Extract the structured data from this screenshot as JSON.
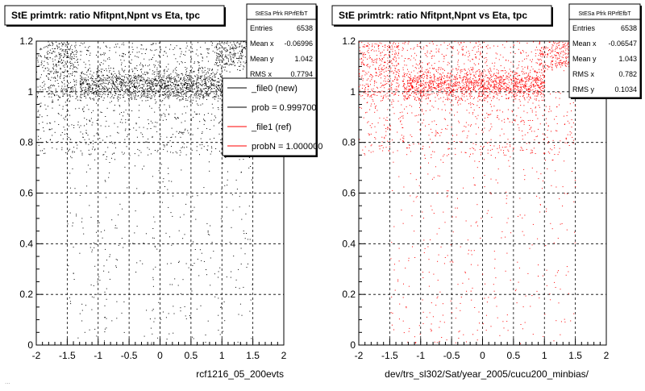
{
  "footer_text": "...",
  "chart_data": [
    {
      "type": "scatter",
      "title": "StE primtrk: ratio Nfitpnt,Npnt vs Eta, tpc",
      "xlim": [
        -2,
        2
      ],
      "ylim": [
        0,
        1.2
      ],
      "xticks": [
        -2,
        -1.5,
        -1,
        -0.5,
        0,
        0.5,
        1,
        1.5,
        2
      ],
      "yticks": [
        0,
        0.2,
        0.4,
        0.6,
        0.8,
        1,
        1.2
      ],
      "grid": true,
      "xlabel": "rcf1216_05_200evts",
      "marker_color": "#000000",
      "stats": {
        "name": "StESa Pfrk RPrfEfbT",
        "rows": [
          {
            "label": "Entries",
            "value": "6538"
          },
          {
            "label": "Mean x",
            "value": "-0.06996"
          },
          {
            "label": "Mean y",
            "value": "1.042"
          },
          {
            "label": "RMS x",
            "value": "0.7794"
          }
        ]
      },
      "legend": {
        "placement": "top-right",
        "entries": [
          {
            "label": "_file0 (new)",
            "color": "#000000"
          },
          {
            "label": "prob = 0.999700",
            "color": "#000000"
          },
          {
            "label": "_file1 (ref)",
            "color": "#ff0000"
          },
          {
            "label": "probN = 1.000000",
            "color": "#ff0000"
          }
        ]
      },
      "density_bands": [
        {
          "x": [
            -2,
            -1.35
          ],
          "y": [
            0.98,
            1.2
          ],
          "weight": 0.1
        },
        {
          "x": [
            -1.3,
            1.0
          ],
          "y": [
            0.96,
            1.1
          ],
          "weight": 0.42
        },
        {
          "x": [
            -1.7,
            1.9
          ],
          "y": [
            1.08,
            1.2
          ],
          "weight": 0.12
        },
        {
          "x": [
            0.9,
            1.9
          ],
          "y": [
            1.1,
            1.2
          ],
          "weight": 0.1
        },
        {
          "x": [
            -2,
            1.5
          ],
          "y": [
            0.75,
            1.0
          ],
          "weight": 0.16
        },
        {
          "x": [
            -1.5,
            1.5
          ],
          "y": [
            0.0,
            0.75
          ],
          "weight": 0.1
        }
      ]
    },
    {
      "type": "scatter",
      "title": "StE primtrk: ratio Nfitpnt,Npnt vs Eta, tpc",
      "xlim": [
        -2,
        2
      ],
      "ylim": [
        0,
        1.2
      ],
      "xticks": [
        -2,
        -1.5,
        -1,
        -0.5,
        0,
        0.5,
        1,
        1.5,
        2
      ],
      "yticks": [
        0,
        0.2,
        0.4,
        0.6,
        0.8,
        1,
        1.2
      ],
      "grid": true,
      "xlabel": "dev/trs_sl302/Sat/year_2005/cucu200_minbias/",
      "marker_color": "#ff0000",
      "stats": {
        "name": "StESa Pfrk RPrfEfbT",
        "rows": [
          {
            "label": "Entries",
            "value": "6538"
          },
          {
            "label": "Mean x",
            "value": "-0.06547"
          },
          {
            "label": "Mean y",
            "value": "1.043"
          },
          {
            "label": "RMS x",
            "value": "0.782"
          },
          {
            "label": "RMS y",
            "value": "0.1034"
          }
        ]
      },
      "density_bands": [
        {
          "x": [
            -2,
            -1.35
          ],
          "y": [
            0.98,
            1.2
          ],
          "weight": 0.1
        },
        {
          "x": [
            -1.3,
            1.0
          ],
          "y": [
            0.96,
            1.1
          ],
          "weight": 0.42
        },
        {
          "x": [
            -1.7,
            1.9
          ],
          "y": [
            1.08,
            1.2
          ],
          "weight": 0.12
        },
        {
          "x": [
            0.9,
            1.9
          ],
          "y": [
            1.1,
            1.2
          ],
          "weight": 0.1
        },
        {
          "x": [
            -2,
            1.5
          ],
          "y": [
            0.75,
            1.0
          ],
          "weight": 0.16
        },
        {
          "x": [
            -1.5,
            1.5
          ],
          "y": [
            0.0,
            0.75
          ],
          "weight": 0.1
        }
      ]
    }
  ]
}
